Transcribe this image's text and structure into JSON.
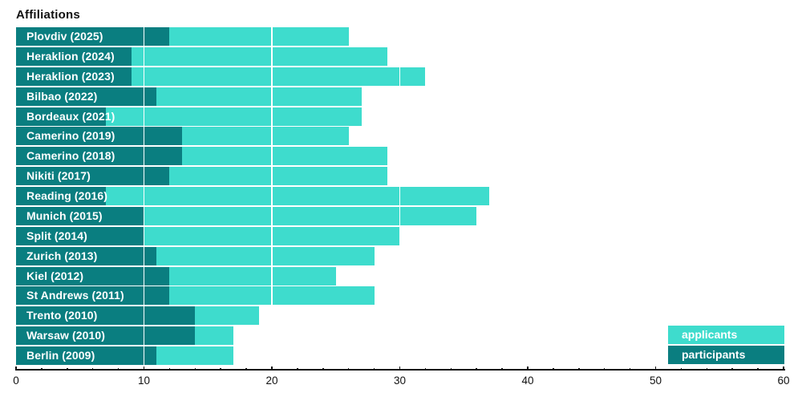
{
  "title": "Affiliations",
  "legend": {
    "applicants_label": "applicants",
    "participants_label": "participants"
  },
  "colors": {
    "applicants": "#3EDCCD",
    "participants": "#0A7E80",
    "axis_text": "#111111",
    "gridline": "#FFFFFF",
    "background": "#FFFFFF"
  },
  "axis": {
    "min": 0,
    "max": 60,
    "major_tick_step": 10,
    "minor_tick_step": 2,
    "tick_labels": [
      "0",
      "10",
      "20",
      "30",
      "40",
      "50",
      "60"
    ]
  },
  "chart_data": {
    "type": "bar",
    "orientation": "horizontal",
    "title": "Affiliations",
    "categories": [
      "Plovdiv (2025)",
      "Heraklion (2024)",
      "Heraklion (2023)",
      "Bilbao (2022)",
      "Bordeaux (2021)",
      "Camerino (2019)",
      "Camerino (2018)",
      "Nikiti (2017)",
      "Reading (2016)",
      "Munich (2015)",
      "Split (2014)",
      "Zurich (2013)",
      "Kiel (2012)",
      "St Andrews (2011)",
      "Trento (2010)",
      "Warsaw (2010)",
      "Berlin (2009)"
    ],
    "series": [
      {
        "name": "applicants",
        "values": [
          26,
          29,
          32,
          27,
          27,
          26,
          29,
          29,
          37,
          36,
          30,
          28,
          25,
          28,
          19,
          17,
          17
        ]
      },
      {
        "name": "participants",
        "values": [
          12,
          9,
          9,
          11,
          7,
          13,
          13,
          12,
          7,
          10,
          10,
          11,
          12,
          12,
          14,
          14,
          11
        ]
      }
    ],
    "xlim": [
      0,
      60
    ],
    "grid": "white vertical lines at multiples of 10, drawn over bars",
    "legend_position": "lower right",
    "bar_style": "overlapping bars starting at 0; participants drawn on top of applicants; category labels drawn in white inside bars"
  }
}
